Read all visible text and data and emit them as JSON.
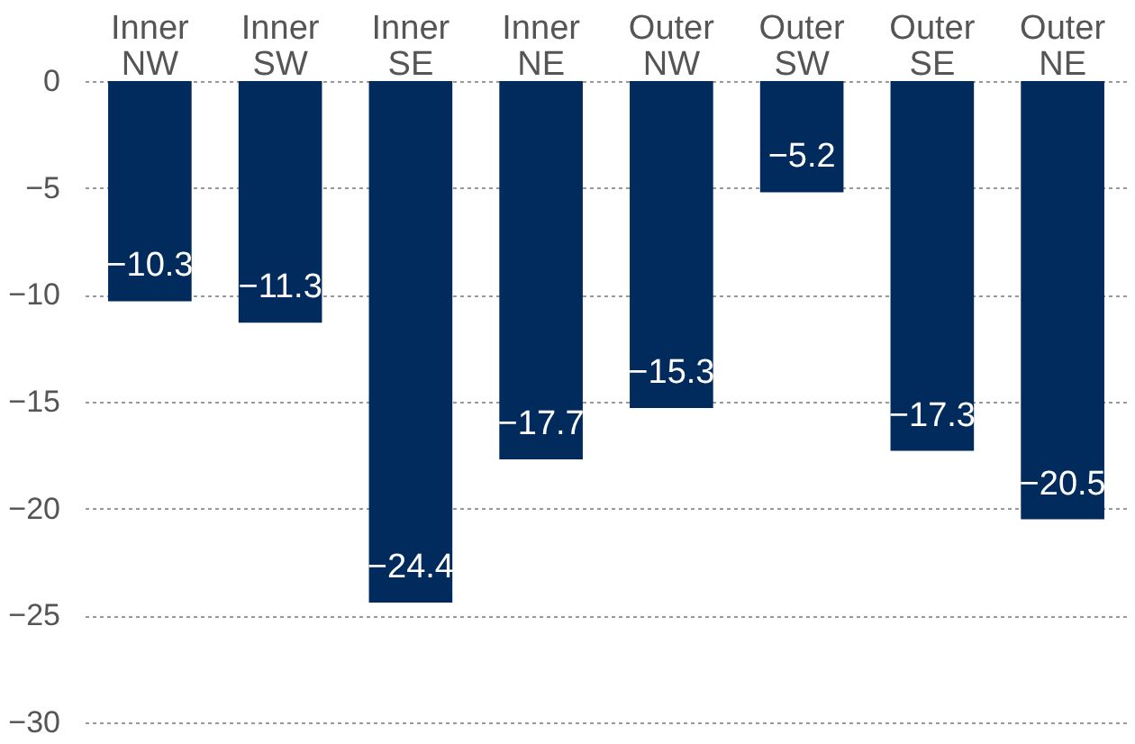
{
  "chart_data": {
    "type": "bar",
    "categories": [
      "Inner NW",
      "Inner SW",
      "Inner SE",
      "Inner NE",
      "Outer NW",
      "Outer SW",
      "Outer SE",
      "Outer NE"
    ],
    "values": [
      -10.3,
      -11.3,
      -24.4,
      -17.7,
      -15.3,
      -5.2,
      -17.3,
      -20.5
    ],
    "color": "#002b5c",
    "ylim": [
      -30,
      0
    ],
    "yticks": [
      -30,
      -25,
      -20,
      -15,
      -10,
      -5,
      0
    ],
    "grid": "y",
    "data_labels": true
  }
}
